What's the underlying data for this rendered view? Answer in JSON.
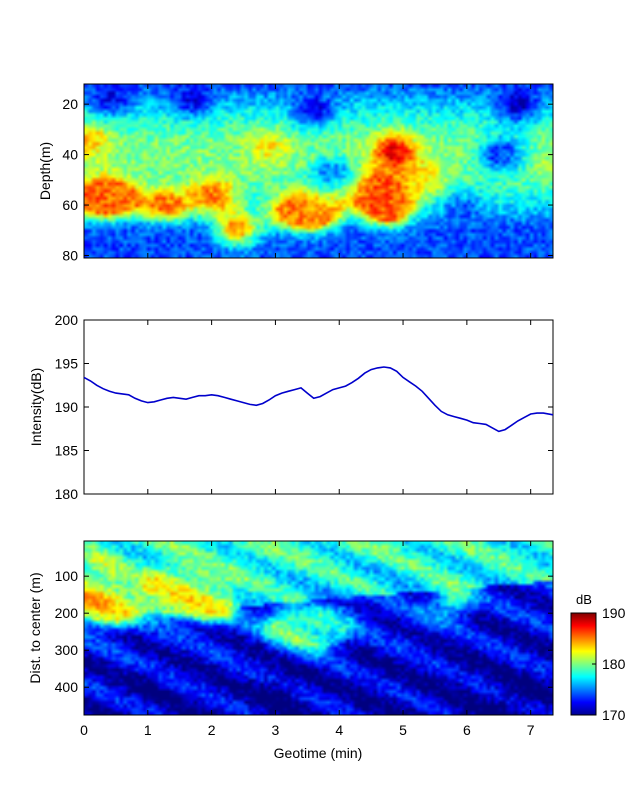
{
  "chart_data": [
    {
      "type": "heatmap",
      "title": "",
      "xlabel": "",
      "ylabel": "Depth(m)",
      "xlim": [
        0,
        7.35
      ],
      "ylim": [
        12,
        81
      ],
      "y_reversed": true,
      "xticks": [
        0,
        1,
        2,
        3,
        4,
        5,
        6,
        7
      ],
      "yticks": [
        20,
        40,
        60,
        80
      ],
      "ytick_labels": [
        "20",
        "40",
        "60",
        "80"
      ],
      "clim": [
        170,
        190
      ],
      "colormap": "jet",
      "hotspots": [
        {
          "x": 0.15,
          "y": 57,
          "value": 186
        },
        {
          "x": 0.55,
          "y": 57,
          "value": 185
        },
        {
          "x": 1.3,
          "y": 60,
          "value": 185
        },
        {
          "x": 2.05,
          "y": 55,
          "value": 185
        },
        {
          "x": 2.4,
          "y": 70,
          "value": 184
        },
        {
          "x": 3.25,
          "y": 62,
          "value": 185
        },
        {
          "x": 3.7,
          "y": 63,
          "value": 185
        },
        {
          "x": 4.55,
          "y": 55,
          "value": 187
        },
        {
          "x": 4.85,
          "y": 38,
          "value": 188
        },
        {
          "x": 4.8,
          "y": 62,
          "value": 185
        },
        {
          "x": 0.1,
          "y": 34,
          "value": 184
        },
        {
          "x": 2.9,
          "y": 37,
          "value": 183
        },
        {
          "x": 5.4,
          "y": 50,
          "value": 182
        },
        {
          "x": 7.2,
          "y": 42,
          "value": 181
        }
      ],
      "coldspots": [
        {
          "x": 0.4,
          "y": 18,
          "value": 172
        },
        {
          "x": 1.7,
          "y": 18,
          "value": 172
        },
        {
          "x": 3.6,
          "y": 22,
          "value": 172
        },
        {
          "x": 6.8,
          "y": 20,
          "value": 171
        },
        {
          "x": 5.9,
          "y": 62,
          "value": 174
        },
        {
          "x": 3.9,
          "y": 48,
          "value": 174
        },
        {
          "x": 6.5,
          "y": 40,
          "value": 173
        }
      ]
    },
    {
      "type": "line",
      "title": "",
      "xlabel": "",
      "ylabel": "Intensity(dB)",
      "xlim": [
        0,
        7.35
      ],
      "ylim": [
        180,
        200
      ],
      "xticks": [
        0,
        1,
        2,
        3,
        4,
        5,
        6,
        7
      ],
      "yticks": [
        180,
        185,
        190,
        195,
        200
      ],
      "ytick_labels": [
        "180",
        "185",
        "190",
        "195",
        "200"
      ],
      "color": "#0000cc",
      "x": [
        0,
        0.1,
        0.2,
        0.3,
        0.4,
        0.5,
        0.6,
        0.7,
        0.8,
        0.9,
        1.0,
        1.1,
        1.2,
        1.3,
        1.4,
        1.5,
        1.6,
        1.7,
        1.8,
        1.9,
        2.0,
        2.1,
        2.2,
        2.3,
        2.4,
        2.5,
        2.6,
        2.7,
        2.8,
        2.9,
        3.0,
        3.1,
        3.2,
        3.3,
        3.4,
        3.5,
        3.6,
        3.7,
        3.8,
        3.9,
        4.0,
        4.1,
        4.2,
        4.3,
        4.4,
        4.5,
        4.6,
        4.7,
        4.8,
        4.9,
        5.0,
        5.1,
        5.2,
        5.3,
        5.4,
        5.5,
        5.6,
        5.7,
        5.8,
        5.9,
        6.0,
        6.1,
        6.2,
        6.3,
        6.4,
        6.5,
        6.6,
        6.7,
        6.8,
        6.9,
        7.0,
        7.1,
        7.2,
        7.35
      ],
      "values": [
        193.4,
        193.0,
        192.5,
        192.1,
        191.8,
        191.6,
        191.5,
        191.4,
        191.0,
        190.7,
        190.5,
        190.6,
        190.8,
        191.0,
        191.1,
        191.0,
        190.9,
        191.1,
        191.3,
        191.3,
        191.4,
        191.3,
        191.1,
        190.9,
        190.7,
        190.5,
        190.3,
        190.2,
        190.4,
        190.8,
        191.3,
        191.6,
        191.8,
        192.0,
        192.2,
        191.6,
        191.0,
        191.2,
        191.6,
        192.0,
        192.2,
        192.4,
        192.8,
        193.3,
        193.9,
        194.3,
        194.5,
        194.6,
        194.5,
        194.1,
        193.4,
        192.9,
        192.4,
        191.8,
        191.0,
        190.2,
        189.5,
        189.1,
        188.9,
        188.7,
        188.5,
        188.2,
        188.1,
        188.0,
        187.6,
        187.2,
        187.4,
        187.9,
        188.4,
        188.8,
        189.2,
        189.3,
        189.3,
        189.1
      ]
    },
    {
      "type": "heatmap",
      "title": "",
      "xlabel": "Geotime (min)",
      "ylabel": "Dist. to center (m)",
      "xlim": [
        0,
        7.35
      ],
      "ylim": [
        5,
        475
      ],
      "y_reversed": true,
      "xticks": [
        0,
        1,
        2,
        3,
        4,
        5,
        6,
        7
      ],
      "xtick_labels": [
        "0",
        "1",
        "2",
        "3",
        "4",
        "5",
        "6",
        "7"
      ],
      "yticks": [
        100,
        200,
        300,
        400
      ],
      "ytick_labels": [
        "100",
        "200",
        "300",
        "400"
      ],
      "clim": [
        170,
        190
      ],
      "colormap": "jet",
      "hotspots": [
        {
          "x": 0.15,
          "y": 165,
          "value": 184
        },
        {
          "x": 0.5,
          "y": 190,
          "value": 181
        },
        {
          "x": 1.2,
          "y": 150,
          "value": 182
        },
        {
          "x": 1.7,
          "y": 160,
          "value": 182
        },
        {
          "x": 2.1,
          "y": 175,
          "value": 181
        },
        {
          "x": 1.5,
          "y": 100,
          "value": 180
        },
        {
          "x": 2.6,
          "y": 60,
          "value": 179
        },
        {
          "x": 3.1,
          "y": 230,
          "value": 180
        },
        {
          "x": 3.7,
          "y": 260,
          "value": 180
        },
        {
          "x": 5.8,
          "y": 160,
          "value": 180
        },
        {
          "x": 0.2,
          "y": 75,
          "value": 180
        }
      ],
      "coldspots": [
        {
          "x": 1.0,
          "y": 400,
          "value": 171
        },
        {
          "x": 3.0,
          "y": 410,
          "value": 170
        },
        {
          "x": 4.5,
          "y": 390,
          "value": 171
        },
        {
          "x": 6.0,
          "y": 380,
          "value": 171
        },
        {
          "x": 6.8,
          "y": 430,
          "value": 170
        },
        {
          "x": 4.1,
          "y": 200,
          "value": 174
        },
        {
          "x": 5.2,
          "y": 250,
          "value": 173
        }
      ]
    }
  ],
  "colorbar": {
    "unit": "dB",
    "ticks": [
      170,
      180,
      190
    ],
    "tick_labels": [
      "170",
      "180",
      "190"
    ]
  },
  "shared_x": {
    "ticks": [
      0,
      1,
      2,
      3,
      4,
      5,
      6,
      7
    ]
  }
}
